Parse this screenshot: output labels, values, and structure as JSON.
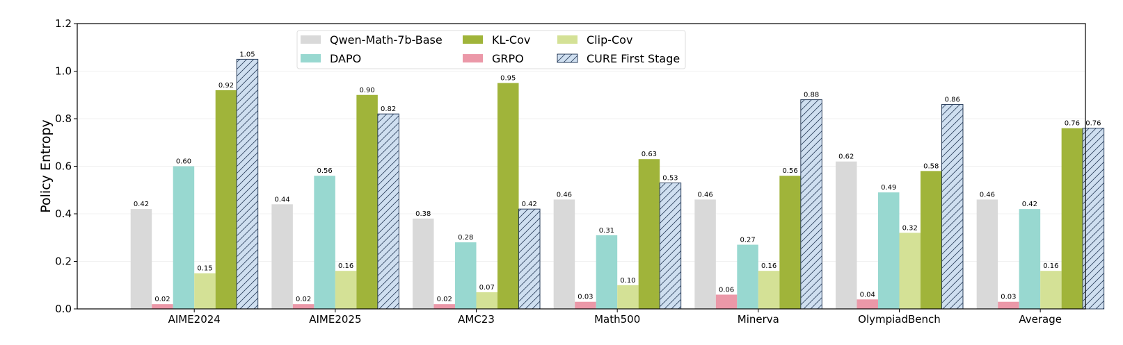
{
  "chart_data": {
    "type": "bar",
    "title": "",
    "xlabel": "",
    "ylabel": "Policy Entropy",
    "ylim": [
      0,
      1.2
    ],
    "yticks": [
      "0.0",
      "0.2",
      "0.4",
      "0.6",
      "0.8",
      "1.0",
      "1.2"
    ],
    "grid": "horizontal, light",
    "legend_position": "top-center",
    "categories": [
      "AIME2024",
      "AIME2025",
      "AMC23",
      "Math500",
      "Minerva",
      "OlympiadBench",
      "Average"
    ],
    "series": [
      {
        "name": "Qwen-Math-7b-Base",
        "color": "#d9d9d9",
        "hatch": false,
        "values": [
          0.42,
          0.44,
          0.38,
          0.46,
          0.46,
          0.62,
          0.46
        ],
        "labels": [
          "0.42",
          "0.44",
          "0.38",
          "0.46",
          "0.46",
          "0.62",
          "0.46"
        ]
      },
      {
        "name": "GRPO",
        "color": "#eb98a8",
        "hatch": false,
        "values": [
          0.02,
          0.02,
          0.02,
          0.03,
          0.06,
          0.04,
          0.03
        ],
        "labels": [
          "0.02",
          "0.02",
          "0.02",
          "0.03",
          "0.06",
          "0.04",
          "0.03"
        ]
      },
      {
        "name": "DAPO",
        "color": "#98d8d0",
        "hatch": false,
        "values": [
          0.6,
          0.56,
          0.28,
          0.31,
          0.27,
          0.49,
          0.42
        ],
        "labels": [
          "0.60",
          "0.56",
          "0.28",
          "0.31",
          "0.27",
          "0.49",
          "0.42"
        ]
      },
      {
        "name": "Clip-Cov",
        "color": "#d4e196",
        "hatch": false,
        "values": [
          0.15,
          0.16,
          0.07,
          0.1,
          0.16,
          0.32,
          0.16
        ],
        "labels": [
          "0.15",
          "0.16",
          "0.07",
          "0.10",
          "0.16",
          "0.32",
          "0.16"
        ]
      },
      {
        "name": "KL-Cov",
        "color": "#a0b43a",
        "hatch": false,
        "values": [
          0.92,
          0.9,
          0.95,
          0.63,
          0.56,
          0.58,
          0.76
        ],
        "labels": [
          "0.92",
          "0.90",
          "0.95",
          "0.63",
          "0.56",
          "0.58",
          "0.76"
        ]
      },
      {
        "name": "CURE First Stage",
        "color": "#cfdff0",
        "hatch": true,
        "values": [
          1.05,
          0.82,
          0.42,
          0.53,
          0.88,
          0.86,
          0.76
        ],
        "labels": [
          "1.05",
          "0.82",
          "0.42",
          "0.53",
          "0.88",
          "0.86",
          "0.76"
        ]
      }
    ],
    "legend_order": [
      0,
      2,
      4,
      1,
      3,
      5
    ]
  }
}
